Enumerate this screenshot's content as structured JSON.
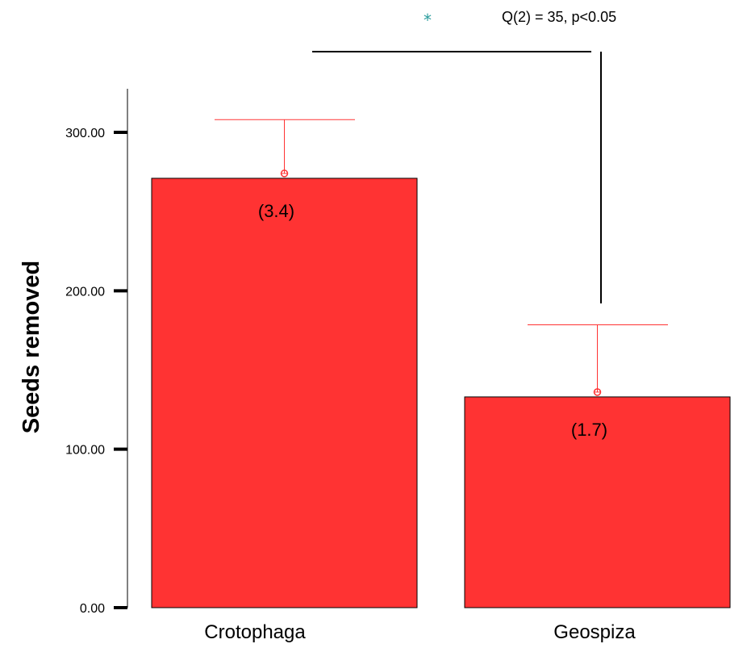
{
  "chart_data": {
    "type": "bar",
    "categories": [
      "Crotophaga",
      "Geospiza"
    ],
    "values": [
      271,
      133
    ],
    "error_upper": [
      308,
      178.5
    ],
    "bar_labels": [
      "(3.4)",
      "(1.7)"
    ],
    "ylabel": "Seeds  removed",
    "ylim": [
      0,
      300
    ],
    "yticks": [
      "0.00",
      "100.00",
      "200.00",
      "300.00"
    ],
    "ytick_values": [
      0,
      100,
      200,
      300
    ],
    "grid": false,
    "annotation": {
      "star": "*",
      "text": "Q(2) = 35, p<0.05"
    },
    "colors": {
      "bar": "#ff3333",
      "error": "#ff3333",
      "star": "#2a9d9d",
      "axis": "#000000"
    }
  }
}
